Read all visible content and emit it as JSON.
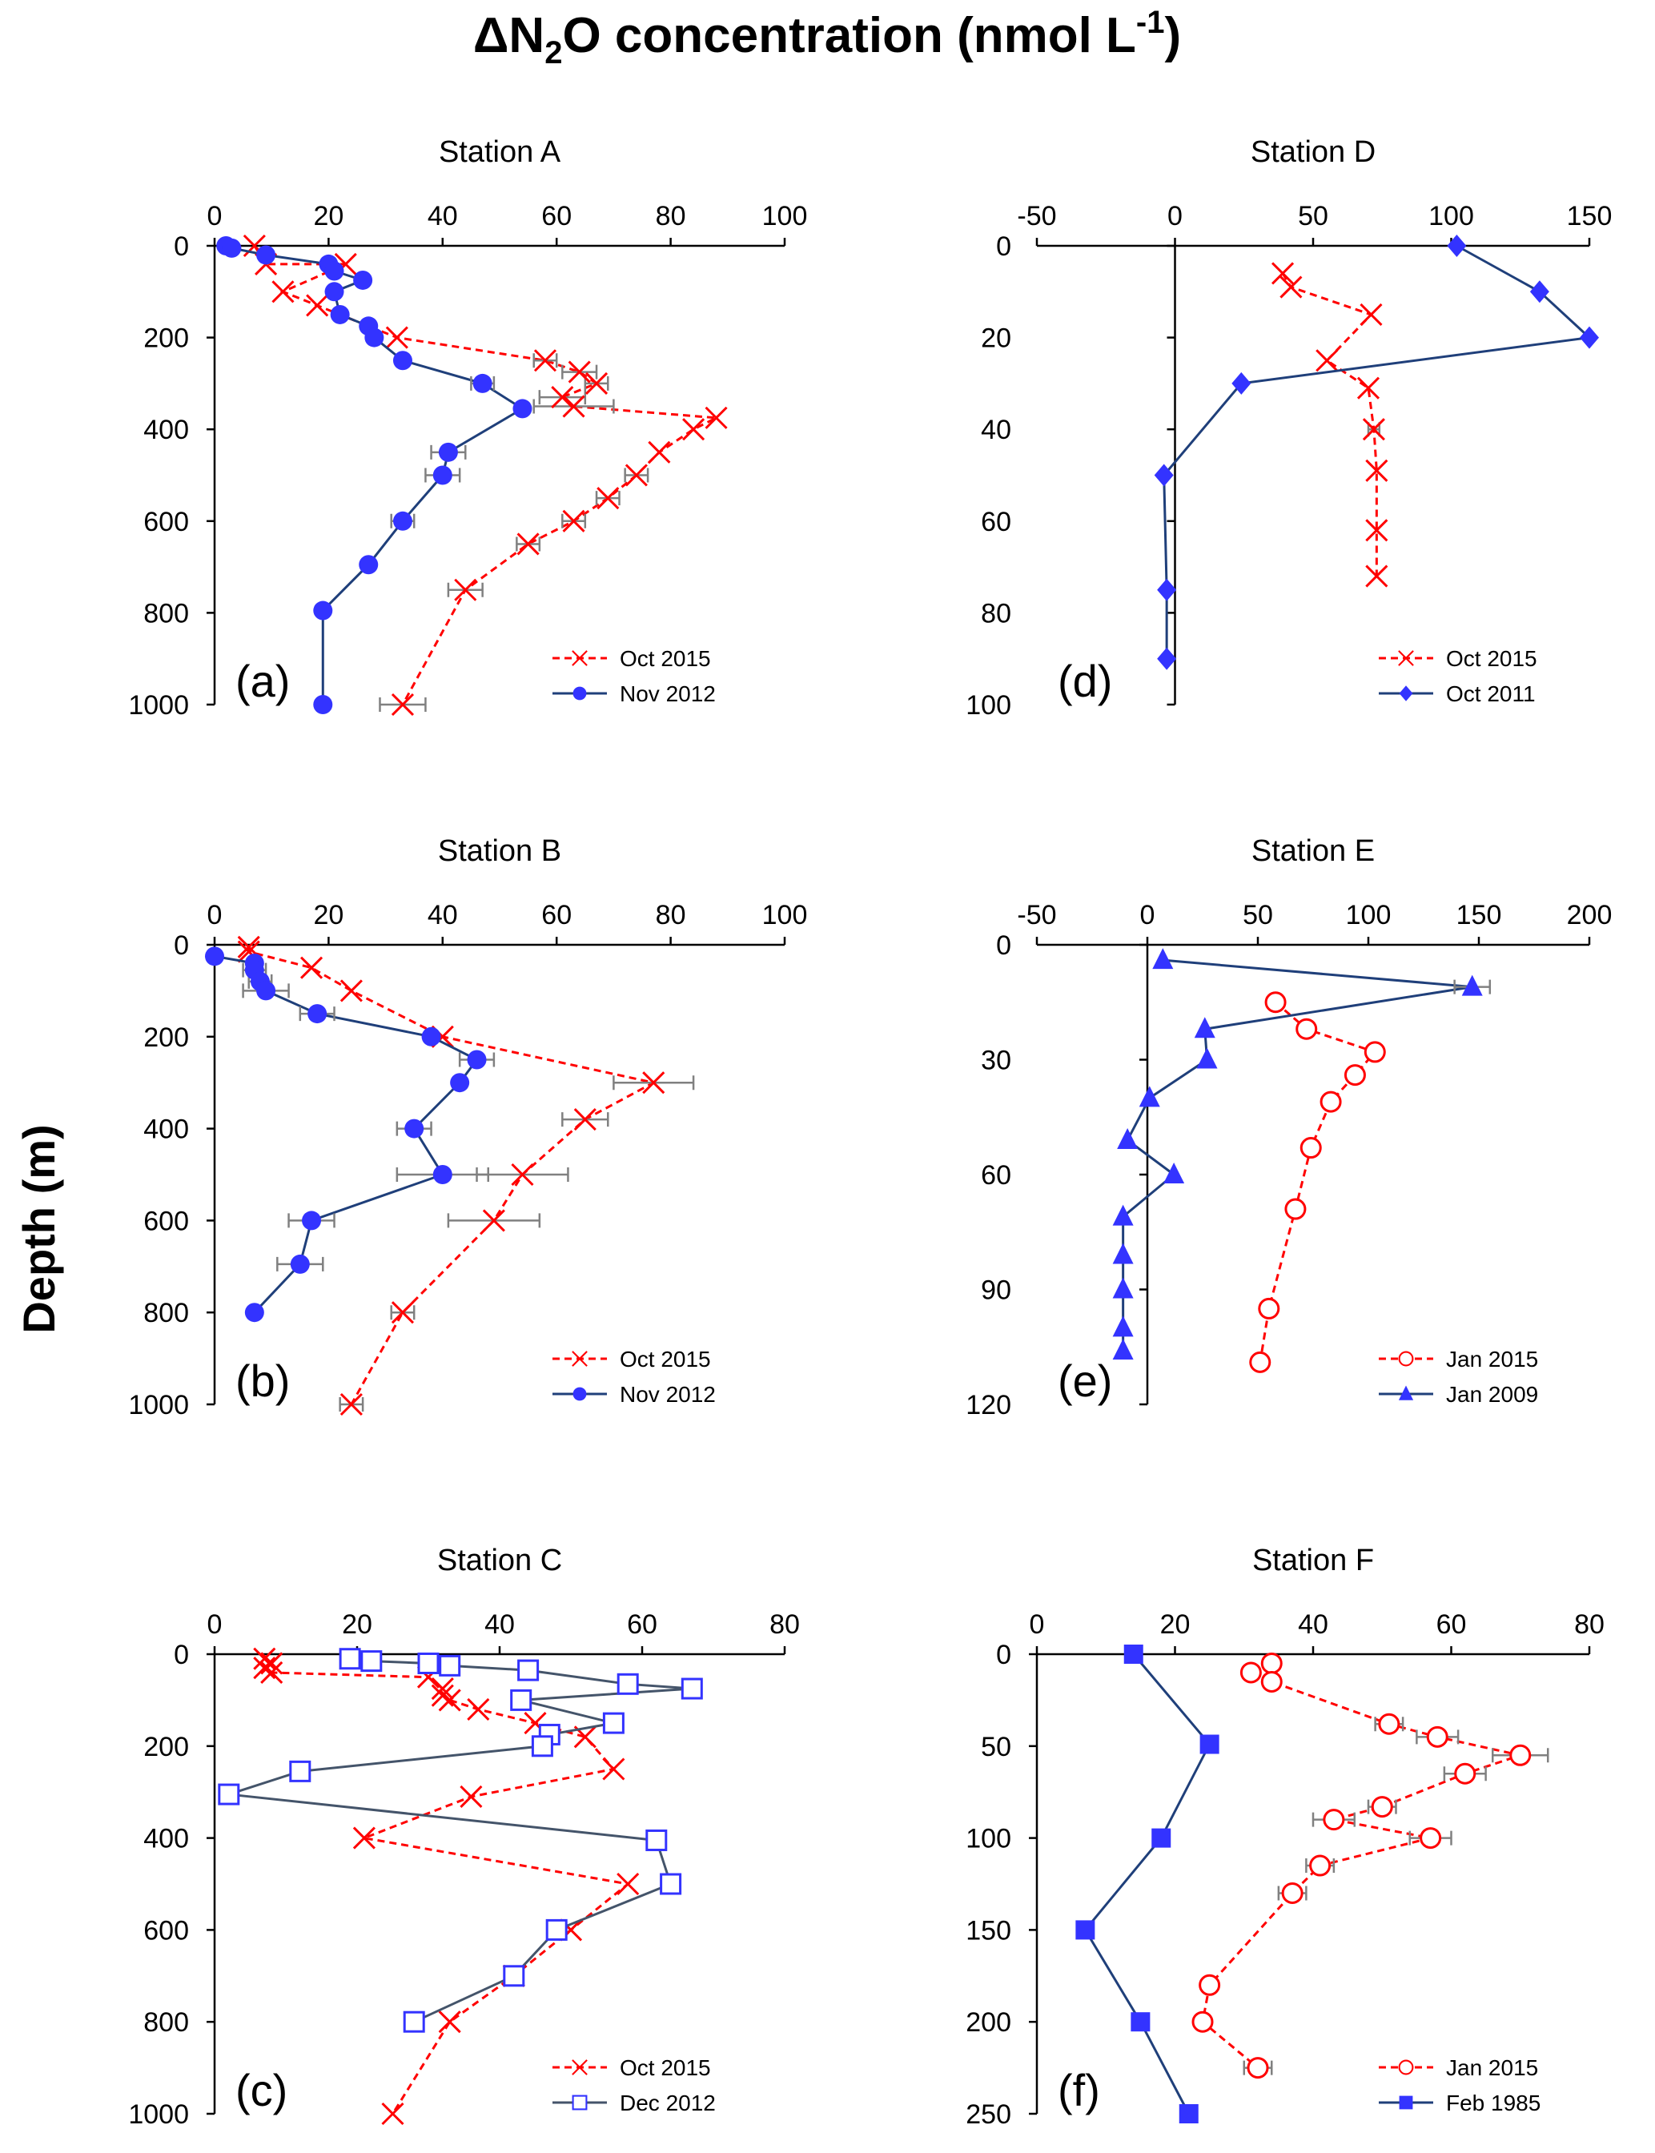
{
  "figure": {
    "title_main": "ΔN",
    "title_sub": "2",
    "title_rest": "O concentration (nmol L",
    "title_sup": "-1",
    "title_end": ")",
    "ylabel": "Depth (m)"
  },
  "colors": {
    "red": "#ff0000",
    "blue": "#3333ff",
    "line_blue": "#1f3f7a",
    "line_slate": "#44546a",
    "err": "#808080"
  },
  "chart_data": [
    {
      "id": "a",
      "type": "line",
      "title": "Station A",
      "panel_label": "(a)",
      "xlim": [
        0,
        100
      ],
      "xticks": [
        0,
        20,
        40,
        60,
        80,
        100
      ],
      "ylim": [
        0,
        1000
      ],
      "yticks": [
        0,
        200,
        400,
        600,
        800,
        1000
      ],
      "series": [
        {
          "name": "Oct 2015",
          "marker": "x",
          "style": "dashed",
          "color": "#ff0000",
          "points": [
            [
              7,
              0
            ],
            [
              9,
              40
            ],
            [
              23,
              40
            ],
            [
              12,
              100
            ],
            [
              18,
              130
            ],
            [
              32,
              200
            ],
            [
              58,
              250
            ],
            [
              64,
              275
            ],
            [
              67,
              300
            ],
            [
              61,
              330
            ],
            [
              63,
              350
            ],
            [
              88,
              375
            ],
            [
              84,
              400
            ],
            [
              78,
              450
            ],
            [
              74,
              500
            ],
            [
              69,
              550
            ],
            [
              63,
              600
            ],
            [
              55,
              650
            ],
            [
              44,
              750
            ],
            [
              33,
              1000
            ]
          ],
          "errors": [
            0,
            0,
            0,
            0,
            0,
            0,
            2,
            3,
            2,
            4,
            7,
            0,
            0,
            0,
            2,
            2,
            2,
            2,
            3,
            4
          ]
        },
        {
          "name": "Nov 2012",
          "marker": "circle",
          "style": "solid",
          "color": "#3333ff",
          "line": "#1f3f7a",
          "points": [
            [
              2,
              0
            ],
            [
              3,
              5
            ],
            [
              9,
              20
            ],
            [
              20,
              40
            ],
            [
              21,
              55
            ],
            [
              26,
              75
            ],
            [
              21,
              100
            ],
            [
              22,
              150
            ],
            [
              27,
              175
            ],
            [
              28,
              200
            ],
            [
              33,
              250
            ],
            [
              47,
              300
            ],
            [
              54,
              355
            ],
            [
              41,
              450
            ],
            [
              40,
              500
            ],
            [
              33,
              600
            ],
            [
              27,
              695
            ],
            [
              19,
              795
            ],
            [
              19,
              1000
            ]
          ],
          "errors": [
            0,
            0,
            0,
            0,
            0,
            0,
            0,
            0,
            0,
            0,
            0,
            2,
            0,
            3,
            3,
            2,
            0,
            0,
            0
          ]
        }
      ]
    },
    {
      "id": "b",
      "type": "line",
      "title": "Station B",
      "panel_label": "(b)",
      "xlim": [
        0,
        100
      ],
      "xticks": [
        0,
        20,
        40,
        60,
        80,
        100
      ],
      "ylim": [
        0,
        1000
      ],
      "yticks": [
        0,
        200,
        400,
        600,
        800,
        1000
      ],
      "series": [
        {
          "name": "Oct 2015",
          "marker": "x",
          "style": "dashed",
          "color": "#ff0000",
          "points": [
            [
              6,
              5
            ],
            [
              6,
              15
            ],
            [
              17,
              50
            ],
            [
              24,
              100
            ],
            [
              40,
              200
            ],
            [
              77,
              300
            ],
            [
              65,
              380
            ],
            [
              54,
              500
            ],
            [
              49,
              600
            ],
            [
              33,
              800
            ],
            [
              24,
              1000
            ]
          ],
          "errors": [
            0,
            0,
            0,
            0,
            0,
            7,
            4,
            8,
            8,
            2,
            2
          ]
        },
        {
          "name": "Nov 2012",
          "marker": "circle",
          "style": "solid",
          "color": "#3333ff",
          "line": "#1f3f7a",
          "points": [
            [
              0,
              25
            ],
            [
              7,
              40
            ],
            [
              7,
              55
            ],
            [
              8,
              80
            ],
            [
              9,
              100
            ],
            [
              18,
              150
            ],
            [
              38,
              200
            ],
            [
              46,
              250
            ],
            [
              43,
              300
            ],
            [
              35,
              400
            ],
            [
              40,
              500
            ],
            [
              17,
              600
            ],
            [
              15,
              695
            ],
            [
              7,
              800
            ]
          ],
          "errors": [
            0,
            0,
            2,
            2,
            4,
            3,
            0,
            3,
            0,
            3,
            8,
            4,
            4,
            0
          ]
        }
      ]
    },
    {
      "id": "c",
      "type": "line",
      "title": "Station C",
      "panel_label": "(c)",
      "xlim": [
        0,
        80
      ],
      "xticks": [
        0,
        20,
        40,
        60,
        80
      ],
      "ylim": [
        0,
        1000
      ],
      "yticks": [
        0,
        200,
        400,
        600,
        800,
        1000
      ],
      "series": [
        {
          "name": "Oct 2015",
          "marker": "x",
          "style": "dashed",
          "color": "#ff0000",
          "points": [
            [
              7,
              10
            ],
            [
              8,
              20
            ],
            [
              7,
              30
            ],
            [
              8,
              40
            ],
            [
              30,
              50
            ],
            [
              32,
              75
            ],
            [
              32,
              90
            ],
            [
              33,
              100
            ],
            [
              37,
              120
            ],
            [
              45,
              150
            ],
            [
              52,
              180
            ],
            [
              56,
              250
            ],
            [
              36,
              310
            ],
            [
              21,
              400
            ],
            [
              58,
              500
            ],
            [
              50,
              600
            ],
            [
              42,
              700
            ],
            [
              33,
              800
            ],
            [
              25,
              1000
            ]
          ],
          "errors": [
            0,
            0,
            0,
            0,
            0,
            0,
            0,
            0,
            0,
            0,
            0,
            0,
            0,
            0,
            0,
            0,
            0,
            0,
            0
          ]
        },
        {
          "name": "Dec 2012",
          "marker": "square",
          "style": "solid",
          "color": "#3333ff",
          "line": "#44546a",
          "points": [
            [
              19,
              10
            ],
            [
              22,
              15
            ],
            [
              30,
              20
            ],
            [
              33,
              25
            ],
            [
              44,
              35
            ],
            [
              58,
              65
            ],
            [
              67,
              75
            ],
            [
              43,
              100
            ],
            [
              56,
              150
            ],
            [
              47,
              175
            ],
            [
              46,
              200
            ],
            [
              12,
              255
            ],
            [
              2,
              305
            ],
            [
              62,
              405
            ],
            [
              64,
              500
            ],
            [
              48,
              600
            ],
            [
              42,
              700
            ],
            [
              28,
              800
            ]
          ],
          "errors": [
            0,
            0,
            0,
            0,
            0,
            0,
            0,
            0,
            0,
            0,
            0,
            0,
            0,
            0,
            0,
            0,
            1,
            0
          ]
        }
      ]
    },
    {
      "id": "d",
      "type": "line",
      "title": "Station D",
      "panel_label": "(d)",
      "xlim": [
        -50,
        150
      ],
      "xticks": [
        -50,
        0,
        50,
        100,
        150
      ],
      "ylim": [
        0,
        100
      ],
      "yticks": [
        0,
        20,
        40,
        60,
        80,
        100
      ],
      "series": [
        {
          "name": "Oct 2015",
          "marker": "x",
          "style": "dashed",
          "color": "#ff0000",
          "points": [
            [
              39,
              6
            ],
            [
              42,
              9
            ],
            [
              71,
              15
            ],
            [
              55,
              25
            ],
            [
              70,
              31
            ],
            [
              72,
              40
            ],
            [
              73,
              49
            ],
            [
              73,
              62
            ],
            [
              73,
              72
            ]
          ],
          "errors": [
            0,
            0,
            0,
            0,
            0,
            2,
            0,
            0,
            0
          ]
        },
        {
          "name": "Oct 2011",
          "marker": "diamond",
          "style": "solid",
          "color": "#3333ff",
          "line": "#1f3f7a",
          "points": [
            [
              102,
              0
            ],
            [
              132,
              10
            ],
            [
              150,
              20
            ],
            [
              24,
              30
            ],
            [
              -4,
              50
            ],
            [
              -3,
              75
            ],
            [
              -3,
              90
            ]
          ],
          "errors": [
            0,
            0,
            0,
            0,
            0,
            0,
            0
          ]
        }
      ]
    },
    {
      "id": "e",
      "type": "line",
      "title": "Station E",
      "panel_label": "(e)",
      "xlim": [
        -50,
        200
      ],
      "xticks": [
        -50,
        0,
        50,
        100,
        150,
        200
      ],
      "ylim": [
        0,
        120
      ],
      "yticks": [
        0,
        30,
        60,
        90,
        120
      ],
      "series": [
        {
          "name": "Jan 2015",
          "marker": "circle-open",
          "style": "dashed",
          "color": "#ff0000",
          "points": [
            [
              58,
              15
            ],
            [
              72,
              22
            ],
            [
              103,
              28
            ],
            [
              94,
              34
            ],
            [
              83,
              41
            ],
            [
              74,
              53
            ],
            [
              67,
              69
            ],
            [
              55,
              95
            ],
            [
              51,
              109
            ]
          ],
          "errors": [
            0,
            0,
            0,
            0,
            0,
            0,
            0,
            0,
            0
          ]
        },
        {
          "name": "Jan 2009",
          "marker": "triangle",
          "style": "solid",
          "color": "#3333ff",
          "line": "#1f3f7a",
          "points": [
            [
              7,
              4
            ],
            [
              147,
              11
            ],
            [
              26,
              22
            ],
            [
              27,
              30
            ],
            [
              1,
              40
            ],
            [
              -9,
              51
            ],
            [
              12,
              60
            ],
            [
              -11,
              71
            ],
            [
              -11,
              81
            ],
            [
              -11,
              90
            ],
            [
              -11,
              100
            ],
            [
              -11,
              106
            ]
          ],
          "errors": [
            0,
            8,
            0,
            0,
            0,
            0,
            0,
            0,
            0,
            0,
            0,
            0
          ]
        }
      ]
    },
    {
      "id": "f",
      "type": "line",
      "title": "Station F",
      "panel_label": "(f)",
      "xlim": [
        0,
        80
      ],
      "xticks": [
        0,
        20,
        40,
        60,
        80
      ],
      "ylim": [
        0,
        250
      ],
      "yticks": [
        0,
        50,
        100,
        150,
        200,
        250
      ],
      "series": [
        {
          "name": "Jan 2015",
          "marker": "circle-open",
          "style": "dashed",
          "color": "#ff0000",
          "points": [
            [
              34,
              5
            ],
            [
              31,
              10
            ],
            [
              34,
              15
            ],
            [
              51,
              38
            ],
            [
              58,
              45
            ],
            [
              70,
              55
            ],
            [
              62,
              65
            ],
            [
              50,
              83
            ],
            [
              43,
              90
            ],
            [
              57,
              100
            ],
            [
              41,
              115
            ],
            [
              37,
              130
            ],
            [
              25,
              180
            ],
            [
              24,
              200
            ],
            [
              32,
              225
            ]
          ],
          "errors": [
            0,
            0,
            0,
            2,
            3,
            4,
            3,
            2,
            3,
            3,
            2,
            2,
            0,
            0,
            2
          ]
        },
        {
          "name": "Feb 1985",
          "marker": "square-filled",
          "style": "solid",
          "color": "#3333ff",
          "line": "#1f3f7a",
          "points": [
            [
              14,
              0
            ],
            [
              25,
              49
            ],
            [
              18,
              100
            ],
            [
              7,
              150
            ],
            [
              15,
              200
            ],
            [
              22,
              250
            ]
          ],
          "errors": [
            0,
            0,
            0,
            0,
            0,
            0
          ]
        }
      ]
    }
  ]
}
